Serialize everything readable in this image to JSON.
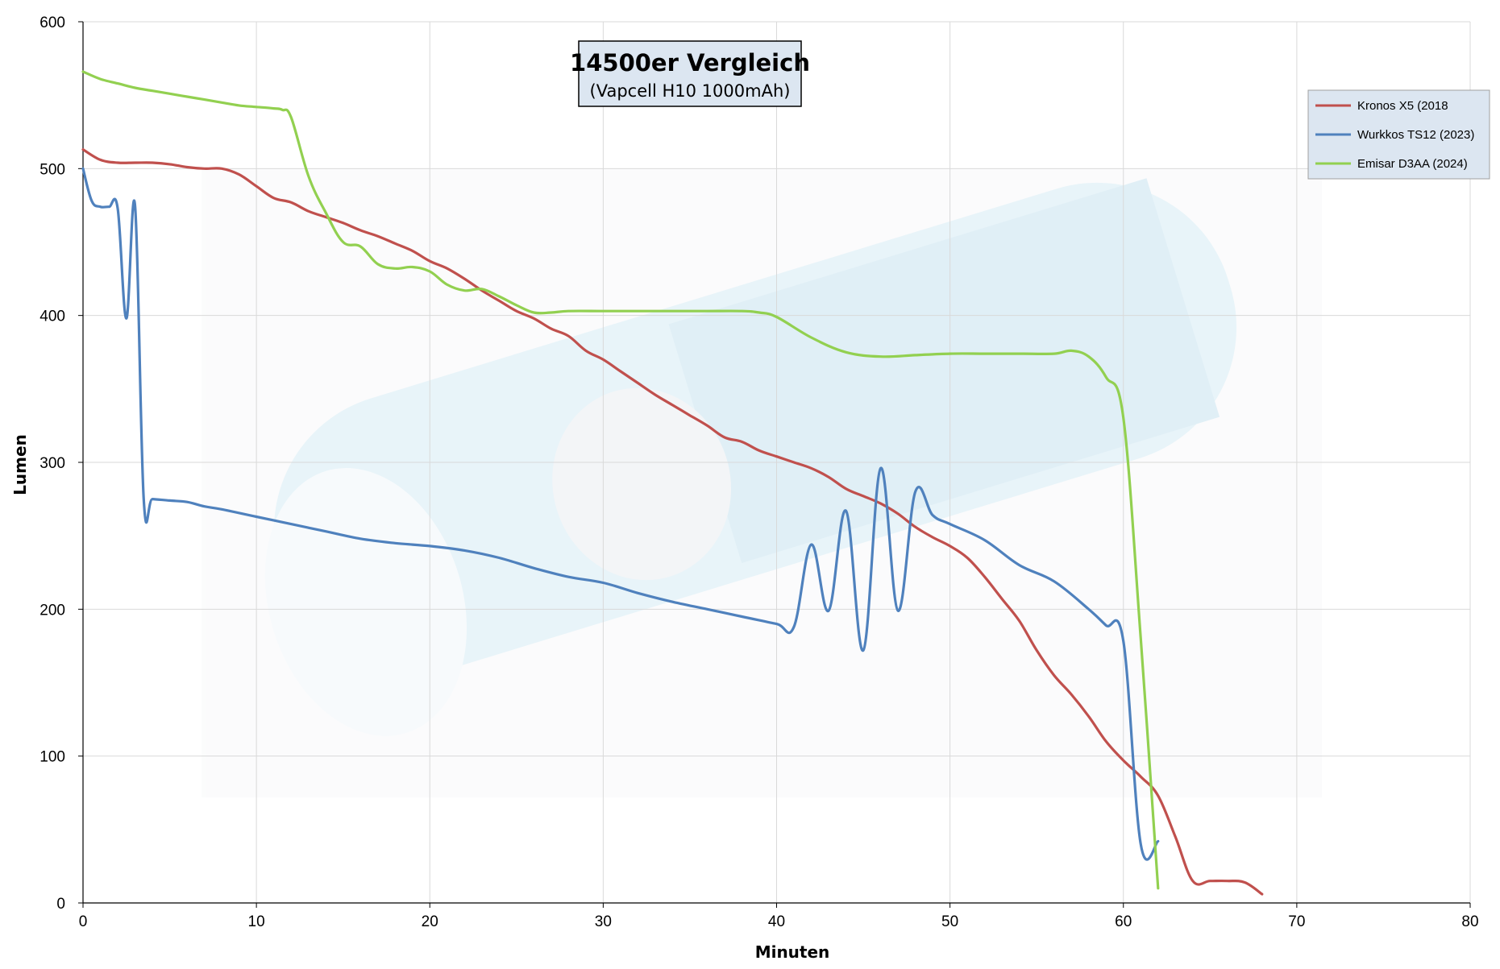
{
  "chart_data": {
    "type": "line",
    "title": "14500er Vergleich",
    "subtitle": "(Vapcell H10 1000mAh)",
    "xlabel": "Minuten",
    "ylabel": "Lumen",
    "xlim": [
      0,
      80
    ],
    "ylim": [
      0,
      600
    ],
    "xticks": [
      "0",
      "10",
      "20",
      "30",
      "40",
      "50",
      "60",
      "70",
      "80"
    ],
    "yticks": [
      "0",
      "100",
      "200",
      "300",
      "400",
      "500",
      "600"
    ],
    "grid": true,
    "legend_position": "top-right",
    "series": [
      {
        "name": "Kronos X5 (2018",
        "color": "#c0504d",
        "x": [
          0,
          1,
          2,
          3,
          4,
          5,
          6,
          7,
          8,
          9,
          10,
          11,
          12,
          13,
          14,
          15,
          16,
          17,
          18,
          19,
          20,
          21,
          22,
          23,
          24,
          25,
          26,
          27,
          28,
          29,
          30,
          31,
          32,
          33,
          34,
          35,
          36,
          37,
          38,
          39,
          40,
          41,
          42,
          43,
          44,
          45,
          46,
          47,
          48,
          49,
          50,
          51,
          52,
          53,
          54,
          55,
          56,
          57,
          58,
          59,
          60,
          61,
          62,
          63,
          64,
          65,
          66,
          67,
          68
        ],
        "y": [
          513,
          506,
          504,
          504,
          504,
          503,
          501,
          500,
          500,
          496,
          488,
          480,
          477,
          471,
          467,
          463,
          458,
          454,
          449,
          444,
          437,
          432,
          425,
          417,
          410,
          403,
          398,
          391,
          386,
          376,
          370,
          362,
          354,
          346,
          339,
          332,
          325,
          317,
          314,
          308,
          304,
          300,
          296,
          290,
          282,
          277,
          272,
          265,
          256,
          249,
          243,
          235,
          222,
          207,
          192,
          172,
          155,
          142,
          127,
          110,
          97,
          86,
          73,
          45,
          15,
          15,
          15,
          14,
          6
        ]
      },
      {
        "name": "Wurkkos TS12 (2023)",
        "color": "#4f81bd",
        "x": [
          0,
          0.5,
          1,
          1.5,
          2,
          2.5,
          3,
          3.5,
          4,
          5,
          6,
          7,
          8,
          10,
          12,
          14,
          16,
          18,
          20,
          22,
          24,
          26,
          28,
          30,
          32,
          34,
          36,
          38,
          40,
          41,
          42,
          43,
          44,
          45,
          46,
          47,
          48,
          49,
          50,
          52,
          54,
          56,
          58,
          59,
          60,
          61,
          62
        ],
        "y": [
          500,
          478,
          474,
          474,
          473,
          398,
          475,
          275,
          275,
          274,
          273,
          270,
          268,
          263,
          258,
          253,
          248,
          245,
          243,
          240,
          235,
          228,
          222,
          218,
          211,
          205,
          200,
          195,
          190,
          188,
          244,
          199,
          267,
          172,
          296,
          199,
          280,
          264,
          258,
          247,
          230,
          219,
          200,
          189,
          178,
          40,
          42
        ]
      },
      {
        "name": "Emisar D3AA (2024)",
        "color": "#92d050",
        "x": [
          0,
          1,
          2,
          3,
          4,
          5,
          6,
          7,
          8,
          9,
          10,
          11,
          11.5,
          12,
          13,
          14,
          15,
          16,
          17,
          18,
          19,
          20,
          21,
          22,
          23,
          24,
          25,
          26,
          27,
          28,
          30,
          32,
          34,
          36,
          38,
          39,
          40,
          42,
          44,
          46,
          48,
          50,
          52,
          54,
          56,
          57,
          58,
          59,
          60,
          61,
          62
        ],
        "y": [
          566,
          561,
          558,
          555,
          553,
          551,
          549,
          547,
          545,
          543,
          542,
          541,
          540,
          535,
          495,
          470,
          450,
          447,
          435,
          432,
          433,
          430,
          421,
          417,
          418,
          413,
          407,
          402,
          402,
          403,
          403,
          403,
          403,
          403,
          403,
          402,
          399,
          385,
          375,
          372,
          373,
          374,
          374,
          374,
          374,
          376,
          372,
          358,
          330,
          180,
          10
        ]
      }
    ]
  }
}
